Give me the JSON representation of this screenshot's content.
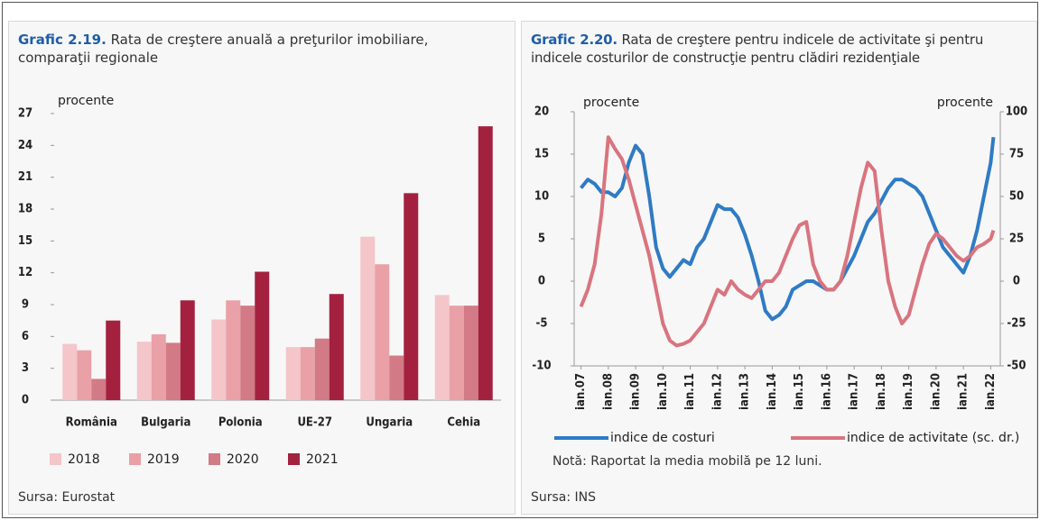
{
  "chart_data": [
    {
      "type": "bar",
      "title_label": "Grafic 2.19.",
      "title": "Rata de creştere anuală a preţurilor imobiliare, comparaţii regionale",
      "y_label": "procente",
      "source": "Sursa: Eurostat",
      "categories": [
        "România",
        "Bulgaria",
        "Polonia",
        "UE-27",
        "Ungaria",
        "Cehia"
      ],
      "series": [
        {
          "name": "2018",
          "color": "#f4c5c9",
          "values": [
            5.3,
            5.5,
            7.6,
            5.0,
            15.4,
            9.9
          ]
        },
        {
          "name": "2019",
          "color": "#e9a0a7",
          "values": [
            4.7,
            6.2,
            9.4,
            5.0,
            12.8,
            8.9
          ]
        },
        {
          "name": "2020",
          "color": "#d27a85",
          "values": [
            2.0,
            5.4,
            8.9,
            5.8,
            4.2,
            8.9
          ]
        },
        {
          "name": "2021",
          "color": "#a3213f",
          "values": [
            7.5,
            9.4,
            12.1,
            10.0,
            19.5,
            25.8
          ]
        }
      ],
      "ylim": [
        0,
        27
      ],
      "yticks": [
        0,
        3,
        6,
        9,
        12,
        15,
        18,
        21,
        24,
        27
      ],
      "grid": false,
      "legend": "bottom"
    },
    {
      "type": "line",
      "title_label": "Grafic 2.20.",
      "title": "Rata de creştere pentru indicele de activitate şi pentru indicele costurilor de construcţie pentru clădiri rezidenţiale",
      "y_label": "procente",
      "y2_label": "procente",
      "note": "Notă: Raportat la media mobilă pe 12 luni.",
      "source": "Sursa: INS",
      "x": [
        2007.0,
        2007.25,
        2007.5,
        2007.75,
        2008.0,
        2008.25,
        2008.5,
        2008.75,
        2009.0,
        2009.25,
        2009.5,
        2009.75,
        2010.0,
        2010.25,
        2010.5,
        2010.75,
        2011.0,
        2011.25,
        2011.5,
        2011.75,
        2012.0,
        2012.25,
        2012.5,
        2012.75,
        2013.0,
        2013.25,
        2013.5,
        2013.75,
        2014.0,
        2014.25,
        2014.5,
        2014.75,
        2015.0,
        2015.25,
        2015.5,
        2015.75,
        2016.0,
        2016.25,
        2016.5,
        2016.75,
        2017.0,
        2017.25,
        2017.5,
        2017.75,
        2018.0,
        2018.25,
        2018.5,
        2018.75,
        2019.0,
        2019.25,
        2019.5,
        2019.75,
        2020.0,
        2020.25,
        2020.5,
        2020.75,
        2021.0,
        2021.25,
        2021.5,
        2021.75,
        2022.0,
        2022.1
      ],
      "series": [
        {
          "name": "indice de costuri",
          "color": "#2f7bc4",
          "values": [
            11,
            12,
            11.5,
            10.5,
            10.5,
            10,
            11,
            14,
            16,
            15,
            10,
            4,
            1.5,
            0.5,
            1.5,
            2.5,
            2,
            4,
            5,
            7,
            9,
            8.5,
            8.5,
            7.5,
            5.5,
            3,
            0,
            -3.5,
            -4.5,
            -4,
            -3,
            -1,
            -0.5,
            0,
            0,
            -0.5,
            -1,
            -1,
            0,
            1.5,
            3,
            5,
            7,
            8,
            9.5,
            11,
            12,
            12,
            11.5,
            11,
            10,
            8,
            6,
            4,
            3,
            2,
            1,
            3,
            6,
            10,
            14,
            17
          ]
        },
        {
          "name": "indice de activitate (sc. dr.)",
          "color": "#d9747f",
          "axis": "y2",
          "values": [
            -15,
            -5,
            10,
            40,
            85,
            78,
            72,
            60,
            45,
            30,
            15,
            -5,
            -25,
            -35,
            -38,
            -37,
            -35,
            -30,
            -25,
            -15,
            -5,
            -8,
            0,
            -5,
            -8,
            -10,
            -5,
            0,
            0,
            5,
            15,
            25,
            33,
            35,
            10,
            0,
            -5,
            -5,
            0,
            15,
            35,
            55,
            70,
            65,
            30,
            0,
            -15,
            -25,
            -20,
            -5,
            10,
            22,
            28,
            25,
            20,
            15,
            12,
            15,
            20,
            22,
            25,
            30
          ]
        }
      ],
      "xlim": [
        2006.75,
        2022.35
      ],
      "xticks": [
        {
          "value": 2007,
          "label": "ian.07"
        },
        {
          "value": 2008,
          "label": "ian.08"
        },
        {
          "value": 2009,
          "label": "ian.09"
        },
        {
          "value": 2010,
          "label": "ian.10"
        },
        {
          "value": 2011,
          "label": "ian.11"
        },
        {
          "value": 2012,
          "label": "ian.12"
        },
        {
          "value": 2013,
          "label": "ian.13"
        },
        {
          "value": 2014,
          "label": "ian.14"
        },
        {
          "value": 2015,
          "label": "ian.15"
        },
        {
          "value": 2016,
          "label": "ian.16"
        },
        {
          "value": 2017,
          "label": "ian.17"
        },
        {
          "value": 2018,
          "label": "ian.18"
        },
        {
          "value": 2019,
          "label": "ian.19"
        },
        {
          "value": 2020,
          "label": "ian.20"
        },
        {
          "value": 2021,
          "label": "ian.21"
        },
        {
          "value": 2022,
          "label": "ian.22"
        }
      ],
      "ylim": [
        -10,
        20
      ],
      "yticks": [
        -10,
        -5,
        0,
        5,
        10,
        15,
        20
      ],
      "y2lim": [
        -50,
        100
      ],
      "y2ticks": [
        -50,
        -25,
        0,
        25,
        50,
        75,
        100
      ],
      "grid": false,
      "legend": "bottom"
    }
  ]
}
